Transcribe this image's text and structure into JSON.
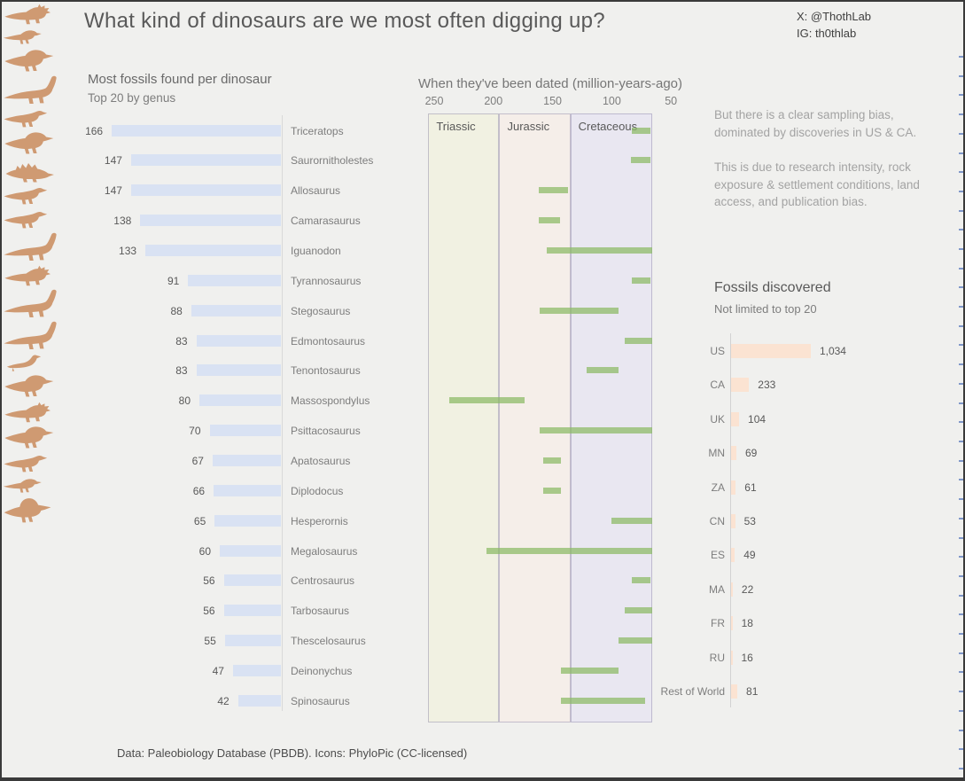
{
  "header": {
    "title": "What kind of dinosaurs are we most often digging up?",
    "social_x": "X: @ThothLab",
    "social_ig": "IG: th0thlab"
  },
  "notes": {
    "p1": "But there is a clear sampling bias, dominated by discoveries in US & CA.",
    "p2": "This is due to research intensity, rock exposure & settlement conditions, land access, and publication bias."
  },
  "footer": {
    "text": "Data: Paleobiology Database (PBDB). Icons: PhyloPic (CC-licensed)"
  },
  "colors": {
    "background": "#f0f0ee",
    "fossil_bar": "#d9e2f3",
    "date_range_bar": "#8fbc64",
    "country_bar": "#fbe3d2",
    "dinosaur_icon": "#cf9a72",
    "triassic_band": "#f1f1e2",
    "jurassic_band": "#f5eee9",
    "cretaceous_band": "#e9e7f1"
  },
  "chart_data": [
    {
      "type": "bar",
      "orientation": "horizontal",
      "title": "Most fossils found per dinosaur",
      "subtitle": "Top 20 by genus",
      "xlim": [
        0,
        166
      ],
      "categories": [
        "Triceratops",
        "Saurornitholestes",
        "Allosaurus",
        "Camarasaurus",
        "Iguanodon",
        "Tyrannosaurus",
        "Stegosaurus",
        "Edmontosaurus",
        "Tenontosaurus",
        "Massospondylus",
        "Psittacosaurus",
        "Apatosaurus",
        "Diplodocus",
        "Hesperornis",
        "Megalosaurus",
        "Centrosaurus",
        "Tarbosaurus",
        "Thescelosaurus",
        "Deinonychus",
        "Spinosaurus"
      ],
      "values": [
        166,
        147,
        147,
        138,
        133,
        91,
        88,
        83,
        83,
        80,
        70,
        67,
        66,
        65,
        60,
        56,
        56,
        55,
        47,
        42
      ],
      "icons": [
        "ceratopsian",
        "raptor",
        "theropod",
        "sauropod",
        "ornithopod",
        "theropod",
        "stegosaur",
        "ornithopod",
        "ornithopod",
        "sauropod",
        "ceratopsian",
        "sauropod",
        "sauropod",
        "bird",
        "theropod",
        "ceratopsian",
        "theropod",
        "ornithopod",
        "raptor",
        "spinosaur"
      ]
    },
    {
      "type": "bar",
      "subtype": "range-timeline",
      "title": "When they've been dated (million-years-ago)",
      "x_ticks": [
        250,
        200,
        150,
        100,
        50
      ],
      "x_axis_reversed": true,
      "periods": [
        {
          "name": "Triassic",
          "from_mya": 255,
          "to_mya": 195,
          "color": "#f1f1e2"
        },
        {
          "name": "Jurassic",
          "from_mya": 195,
          "to_mya": 135,
          "color": "#f5eee9"
        },
        {
          "name": "Cretaceous",
          "from_mya": 135,
          "to_mya": 66,
          "color": "#e9e7f1"
        }
      ],
      "ranges": [
        {
          "genus": "Triceratops",
          "from_mya": 83,
          "to_mya": 67
        },
        {
          "genus": "Saurornitholestes",
          "from_mya": 84,
          "to_mya": 67
        },
        {
          "genus": "Allosaurus",
          "from_mya": 162,
          "to_mya": 137
        },
        {
          "genus": "Camarasaurus",
          "from_mya": 162,
          "to_mya": 144
        },
        {
          "genus": "Iguanodon",
          "from_mya": 155,
          "to_mya": 66
        },
        {
          "genus": "Tyrannosaurus",
          "from_mya": 83,
          "to_mya": 67
        },
        {
          "genus": "Stegosaurus",
          "from_mya": 161,
          "to_mya": 94
        },
        {
          "genus": "Edmontosaurus",
          "from_mya": 89,
          "to_mya": 66
        },
        {
          "genus": "Tenontosaurus",
          "from_mya": 121,
          "to_mya": 94
        },
        {
          "genus": "Massospondylus",
          "from_mya": 237,
          "to_mya": 174
        },
        {
          "genus": "Psittacosaurus",
          "from_mya": 161,
          "to_mya": 66
        },
        {
          "genus": "Apatosaurus",
          "from_mya": 158,
          "to_mya": 143
        },
        {
          "genus": "Diplodocus",
          "from_mya": 158,
          "to_mya": 143
        },
        {
          "genus": "Hesperornis",
          "from_mya": 100,
          "to_mya": 66
        },
        {
          "genus": "Megalosaurus",
          "from_mya": 206,
          "to_mya": 66
        },
        {
          "genus": "Centrosaurus",
          "from_mya": 83,
          "to_mya": 67
        },
        {
          "genus": "Tarbosaurus",
          "from_mya": 89,
          "to_mya": 66
        },
        {
          "genus": "Thescelosaurus",
          "from_mya": 94,
          "to_mya": 66
        },
        {
          "genus": "Deinonychus",
          "from_mya": 143,
          "to_mya": 94
        },
        {
          "genus": "Spinosaurus",
          "from_mya": 143,
          "to_mya": 72
        }
      ]
    },
    {
      "type": "bar",
      "orientation": "horizontal",
      "title": "Fossils discovered",
      "subtitle": "Not limited to top 20",
      "categories": [
        "US",
        "CA",
        "UK",
        "MN",
        "ZA",
        "CN",
        "ES",
        "MA",
        "FR",
        "RU",
        "Rest of World"
      ],
      "values": [
        1034,
        233,
        104,
        69,
        61,
        53,
        49,
        22,
        18,
        16,
        81
      ],
      "value_labels": [
        "1,034",
        "233",
        "104",
        "69",
        "61",
        "53",
        "49",
        "22",
        "18",
        "16",
        "81"
      ]
    }
  ]
}
